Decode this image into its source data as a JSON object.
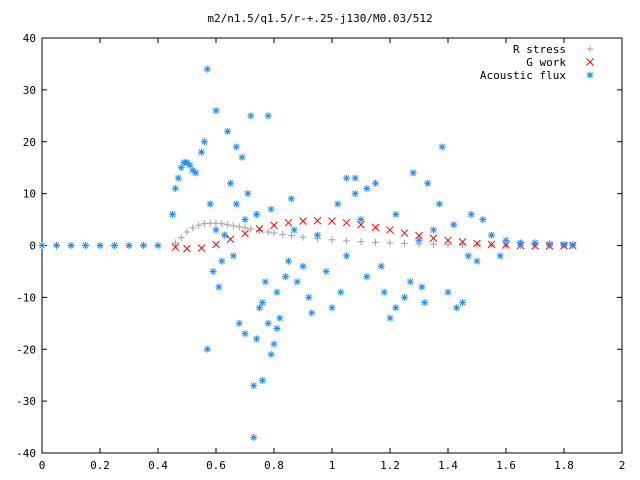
{
  "chart_data": {
    "type": "scatter",
    "title": "m2/n1.5/q1.5/r-+.25-j130/M0.03/512",
    "xlabel": "",
    "ylabel": "",
    "xlim": [
      0,
      2
    ],
    "ylim": [
      -40,
      40
    ],
    "xticks": [
      0,
      0.2,
      0.4,
      0.6,
      0.8,
      1,
      1.2,
      1.4,
      1.6,
      1.8,
      2
    ],
    "yticks": [
      -40,
      -30,
      -20,
      -10,
      0,
      10,
      20,
      30,
      40
    ],
    "xtick_labels": [
      "0",
      "0.2",
      "0.4",
      "0.6",
      "0.8",
      "1",
      "1.2",
      "1.4",
      "1.6",
      "1.8",
      "2"
    ],
    "ytick_labels": [
      "-40",
      "-30",
      "-20",
      "-10",
      "0",
      "10",
      "20",
      "30",
      "40"
    ],
    "grid": false,
    "legend_position": "top-right",
    "series": [
      {
        "name": "R stress",
        "marker": "plus",
        "color": "#a0a0a0",
        "x": [
          0.46,
          0.48,
          0.5,
          0.52,
          0.54,
          0.56,
          0.58,
          0.6,
          0.62,
          0.64,
          0.66,
          0.68,
          0.7,
          0.72,
          0.75,
          0.78,
          0.8,
          0.83,
          0.86,
          0.9,
          0.95,
          1.0,
          1.05,
          1.1,
          1.15,
          1.2,
          1.25,
          1.3,
          1.35,
          1.4,
          1.45,
          1.5,
          1.55,
          1.6,
          1.65,
          1.7,
          1.75,
          1.8,
          1.83
        ],
        "y": [
          0.5,
          1.5,
          2.6,
          3.4,
          3.9,
          4.2,
          4.3,
          4.3,
          4.2,
          4.0,
          3.8,
          3.6,
          3.4,
          3.2,
          2.9,
          2.6,
          2.4,
          2.1,
          1.9,
          1.6,
          1.3,
          1.1,
          0.9,
          0.75,
          0.6,
          0.5,
          0.4,
          0.3,
          0.25,
          0.2,
          0.15,
          0.1,
          0.08,
          0.05,
          0.03,
          0.02,
          0.01,
          0.0,
          0.0
        ]
      },
      {
        "name": "G work",
        "marker": "cross",
        "color": "#ff0000",
        "x": [
          0.46,
          0.5,
          0.55,
          0.6,
          0.65,
          0.7,
          0.75,
          0.8,
          0.85,
          0.9,
          0.95,
          1.0,
          1.05,
          1.1,
          1.15,
          1.2,
          1.25,
          1.3,
          1.35,
          1.4,
          1.45,
          1.5,
          1.55,
          1.6,
          1.65,
          1.7,
          1.75,
          1.8,
          1.83
        ],
        "y": [
          -0.3,
          -0.6,
          -0.5,
          0.2,
          1.2,
          2.3,
          3.2,
          3.9,
          4.4,
          4.7,
          4.8,
          4.7,
          4.4,
          4.0,
          3.5,
          3.0,
          2.4,
          1.9,
          1.4,
          1.0,
          0.7,
          0.4,
          0.2,
          0.1,
          0.0,
          -0.1,
          -0.1,
          -0.05,
          0.0
        ]
      },
      {
        "name": "Acoustic flux",
        "marker": "star",
        "color": "#1e8cff",
        "x": [
          0.0,
          0.05,
          0.1,
          0.15,
          0.2,
          0.25,
          0.3,
          0.35,
          0.4,
          0.45,
          0.46,
          0.47,
          0.48,
          0.49,
          0.5,
          0.51,
          0.52,
          0.53,
          0.55,
          0.56,
          0.57,
          0.58,
          0.59,
          0.6,
          0.6,
          0.61,
          0.62,
          0.63,
          0.64,
          0.65,
          0.66,
          0.67,
          0.68,
          0.69,
          0.7,
          0.7,
          0.71,
          0.72,
          0.73,
          0.74,
          0.75,
          0.76,
          0.77,
          0.78,
          0.78,
          0.79,
          0.8,
          0.81,
          0.82,
          0.84,
          0.85,
          0.86,
          0.88,
          0.9,
          0.92,
          0.95,
          0.98,
          1.0,
          1.02,
          1.05,
          1.08,
          1.1,
          1.12,
          1.15,
          1.18,
          1.2,
          1.22,
          1.25,
          1.28,
          1.3,
          1.32,
          1.35,
          1.38,
          1.4,
          1.42,
          1.45,
          1.48,
          1.5,
          1.52,
          1.55,
          1.58,
          1.6,
          1.65,
          1.7,
          1.75,
          1.8,
          1.83,
          0.57,
          0.74,
          0.76,
          0.79,
          0.81,
          1.05,
          1.12,
          1.17,
          1.22,
          1.31,
          1.37,
          0.67,
          0.73,
          0.87,
          0.93,
          1.03,
          1.08,
          1.27,
          1.33,
          1.43,
          1.47
        ],
        "y": [
          0,
          0,
          0,
          0,
          0,
          0,
          0,
          0,
          0,
          6.0,
          11.0,
          13.0,
          15.0,
          16.0,
          16.0,
          15.5,
          14.5,
          14.0,
          18.0,
          20.0,
          34.0,
          8.0,
          -5.0,
          26.0,
          3.0,
          -8.0,
          -3.0,
          2.0,
          22.0,
          12.0,
          -2.0,
          8.0,
          -15.0,
          17.0,
          -17.0,
          5.0,
          10.0,
          25.0,
          -27.0,
          6.0,
          -12.0,
          -26.0,
          -7.0,
          -15.0,
          25.0,
          -21.0,
          -19.0,
          -9.0,
          -14.0,
          -6.0,
          -3.0,
          9.0,
          -7.0,
          -4.0,
          -10.0,
          2.0,
          -5.0,
          -12.0,
          8.0,
          -2.0,
          13.0,
          5.0,
          -6.0,
          12.0,
          -9.0,
          -14.0,
          6.0,
          -10.0,
          14.0,
          1.0,
          -11.0,
          3.0,
          19.0,
          -9.0,
          4.0,
          -11.0,
          6.0,
          -3.0,
          5.0,
          2.0,
          -2.0,
          1.0,
          0.5,
          0.5,
          0.3,
          0.2,
          0.1,
          -20.0,
          -18.0,
          -11.0,
          7.0,
          -16.0,
          13.0,
          11.0,
          -4.0,
          -12.0,
          -8.0,
          8.0,
          19.0,
          -37.0,
          3.0,
          -13.0,
          -9.0,
          10.0,
          -7.0,
          12.0,
          -12.0,
          -2.0
        ]
      }
    ]
  }
}
